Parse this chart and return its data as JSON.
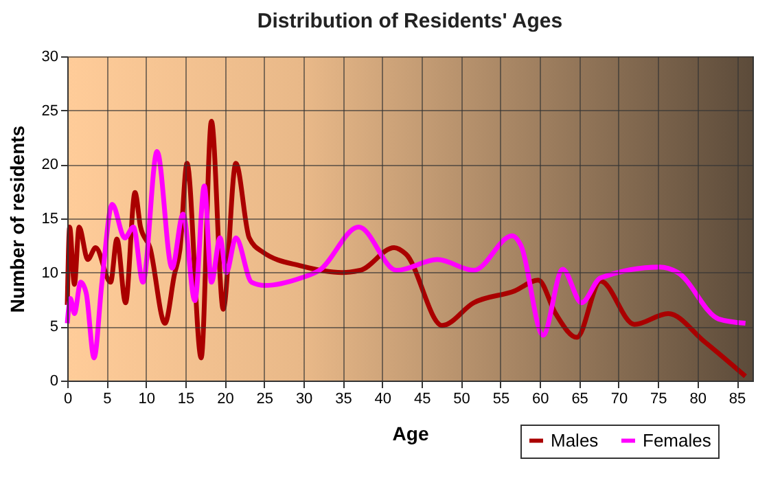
{
  "chart_data": {
    "type": "line",
    "title": "Distribution of Residents' Ages",
    "xlabel": "Age",
    "ylabel": "Number of residents",
    "xlim": [
      0,
      87
    ],
    "xticks": [
      0,
      5,
      10,
      15,
      20,
      25,
      30,
      35,
      40,
      45,
      50,
      55,
      60,
      65,
      70,
      75,
      80,
      85
    ],
    "ylim": [
      0,
      30
    ],
    "yticks": [
      0,
      5,
      10,
      15,
      20,
      25,
      30
    ],
    "grid": true,
    "legend": "bottom right",
    "series": [
      {
        "name": "Males",
        "color": "#aa0000",
        "x": [
          0,
          0.3,
          0.9,
          1.5,
          2.6,
          3.6,
          5.5,
          6.3,
          7.4,
          8.6,
          9.3,
          10.5,
          12.4,
          13.6,
          14.3,
          15.2,
          17,
          18.3,
          19.8,
          21.4,
          23.1,
          24.8,
          29.7,
          34.9,
          37.2,
          41.5,
          43,
          47.6,
          51.6,
          56.8,
          59.8,
          62,
          64.7,
          67.7,
          72,
          76.3,
          80.9,
          86.1
        ],
        "values": [
          7,
          14.2,
          8.9,
          14.2,
          11.2,
          12.3,
          9.1,
          13.1,
          7.2,
          17.4,
          14.2,
          12.3,
          5.3,
          9.8,
          12.1,
          20.1,
          2.1,
          24,
          6.6,
          20.1,
          13.2,
          11.9,
          10.6,
          10,
          10.2,
          12.3,
          11.7,
          5.1,
          7.2,
          8.3,
          9.3,
          6.2,
          4,
          9.2,
          5.2,
          6.2,
          3.6,
          0.4
        ]
      },
      {
        "name": "Females",
        "color": "#ff00ff",
        "x": [
          0,
          0.4,
          0.9,
          1.7,
          2.4,
          3.4,
          4.4,
          5.7,
          7.3,
          8.4,
          9.6,
          11.4,
          13.3,
          14.7,
          16.2,
          17.4,
          18.3,
          19.4,
          20.2,
          21.4,
          23.4,
          25.1,
          29.7,
          32,
          37,
          41.8,
          47,
          51.6,
          56.5,
          57.6,
          60.4,
          62.9,
          65.3,
          67.7,
          75.2,
          77.5,
          82.7,
          86.1
        ],
        "values": [
          5.3,
          7.6,
          6.2,
          9.1,
          8.1,
          2.1,
          9.1,
          16.3,
          13.2,
          14.2,
          9.1,
          21.2,
          10.4,
          15.4,
          7.4,
          18,
          9.1,
          13.2,
          10,
          13.2,
          9.1,
          8.8,
          9.5,
          10.2,
          14.2,
          10.2,
          11.2,
          10.2,
          13.4,
          12.5,
          4.2,
          10.3,
          7.2,
          9.5,
          10.5,
          10,
          5.7,
          5.3
        ]
      }
    ]
  }
}
